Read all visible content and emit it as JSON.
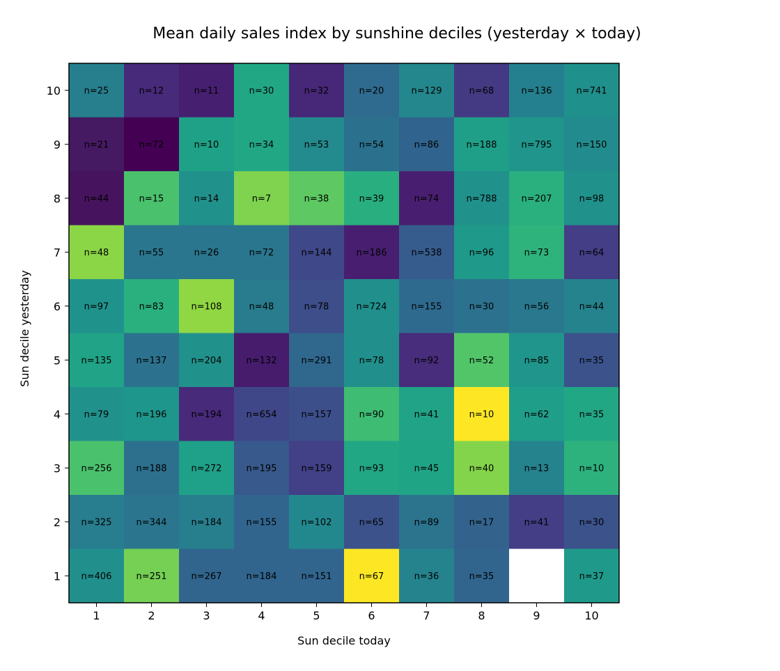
{
  "chart_data": {
    "type": "heatmap",
    "title": "Mean daily sales index by sunshine deciles (yesterday × today)",
    "xlabel": "Sun decile today",
    "ylabel": "Sun decile yesterday",
    "x_categories": [
      "1",
      "2",
      "3",
      "4",
      "5",
      "6",
      "7",
      "8",
      "9",
      "10"
    ],
    "y_categories": [
      "1",
      "2",
      "3",
      "4",
      "5",
      "6",
      "7",
      "8",
      "9",
      "10"
    ],
    "colormap": "viridis",
    "grid": false,
    "legend": "none",
    "rows_top_to_bottom": [
      {
        "y": "10",
        "labels": [
          "n=25",
          "n=12",
          "n=11",
          "n=30",
          "n=32",
          "n=20",
          "n=129",
          "n=68",
          "n=136",
          "n=741"
        ],
        "colors": [
          "#277f8e",
          "#472a7a",
          "#471f70",
          "#22a785",
          "#472777",
          "#2f6b8e",
          "#23878d",
          "#443a83",
          "#24808e",
          "#20908c"
        ]
      },
      {
        "y": "9",
        "labels": [
          "n=21",
          "n=72",
          "n=10",
          "n=34",
          "n=53",
          "n=54",
          "n=86",
          "n=188",
          "n=795",
          "n=150"
        ],
        "colors": [
          "#451a62",
          "#440154",
          "#1fa187",
          "#22a785",
          "#238a8d",
          "#2b718e",
          "#30638e",
          "#1f9f88",
          "#1f958b",
          "#228b8d"
        ]
      },
      {
        "y": "8",
        "labels": [
          "n=44",
          "n=15",
          "n=14",
          "n=7",
          "n=38",
          "n=39",
          "n=74",
          "n=788",
          "n=207",
          "n=98"
        ],
        "colors": [
          "#46145e",
          "#4ac16d",
          "#21918c",
          "#7fd34e",
          "#5ec962",
          "#29af7f",
          "#481f70",
          "#21918c",
          "#2ab07f",
          "#21918c"
        ]
      },
      {
        "y": "7",
        "labels": [
          "n=48",
          "n=55",
          "n=26",
          "n=72",
          "n=144",
          "n=186",
          "n=538",
          "n=96",
          "n=73",
          "n=64"
        ],
        "colors": [
          "#8bd646",
          "#2a768e",
          "#2a768e",
          "#2a768e",
          "#3f4889",
          "#481f70",
          "#365c8d",
          "#1f9a8a",
          "#2eb37c",
          "#433e85"
        ]
      },
      {
        "y": "6",
        "labels": [
          "n=97",
          "n=83",
          "n=108",
          "n=48",
          "n=78",
          "n=724",
          "n=155",
          "n=30",
          "n=56",
          "n=44"
        ],
        "colors": [
          "#20928c",
          "#2ab07f",
          "#90d743",
          "#287c8e",
          "#3d4e8a",
          "#21908d",
          "#2e6a8e",
          "#2c728e",
          "#2a788e",
          "#25838e"
        ]
      },
      {
        "y": "5",
        "labels": [
          "n=135",
          "n=137",
          "n=204",
          "n=132",
          "n=291",
          "n=78",
          "n=92",
          "n=52",
          "n=85",
          "n=35"
        ],
        "colors": [
          "#20a386",
          "#2c728e",
          "#21918c",
          "#471c6d",
          "#30678d",
          "#21908d",
          "#472d7b",
          "#52c569",
          "#1f958b",
          "#3b528b"
        ]
      },
      {
        "y": "4",
        "labels": [
          "n=79",
          "n=196",
          "n=194",
          "n=654",
          "n=157",
          "n=90",
          "n=41",
          "n=10",
          "n=62",
          "n=35"
        ],
        "colors": [
          "#21918c",
          "#1f968b",
          "#472a7a",
          "#3f4788",
          "#3c4f8a",
          "#3ebc74",
          "#20a386",
          "#fde725",
          "#1f9e89",
          "#22a785"
        ]
      },
      {
        "y": "3",
        "labels": [
          "n=256",
          "n=188",
          "n=272",
          "n=195",
          "n=159",
          "n=93",
          "n=45",
          "n=40",
          "n=13",
          "n=10"
        ],
        "colors": [
          "#4ac16d",
          "#2d708e",
          "#1fa088",
          "#38598c",
          "#424086",
          "#22a785",
          "#20a486",
          "#84d44b",
          "#25838e",
          "#2db27d"
        ]
      },
      {
        "y": "2",
        "labels": [
          "n=325",
          "n=344",
          "n=184",
          "n=155",
          "n=102",
          "n=65",
          "n=89",
          "n=17",
          "n=41",
          "n=30"
        ],
        "colors": [
          "#287d8e",
          "#2b768e",
          "#277f8e",
          "#31658e",
          "#23888e",
          "#3b528b",
          "#2c738e",
          "#33638d",
          "#433e85",
          "#3b528b"
        ]
      },
      {
        "y": "1",
        "labels": [
          "n=406",
          "n=251",
          "n=267",
          "n=184",
          "n=151",
          "n=67",
          "n=36",
          "n=35",
          "",
          "n=37"
        ],
        "colors": [
          "#21908d",
          "#75d054",
          "#31658e",
          "#31658e",
          "#31658e",
          "#fde725",
          "#25838e",
          "#31658e",
          null,
          "#1f9a8a"
        ]
      }
    ]
  }
}
